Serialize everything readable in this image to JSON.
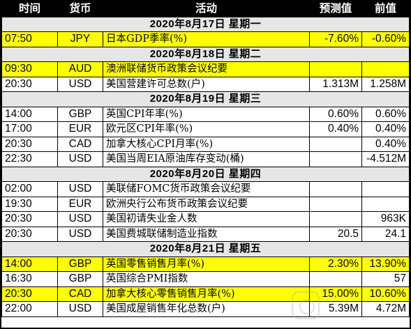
{
  "headers": {
    "time": "时间",
    "currency": "货币",
    "event": "活动",
    "forecast": "预测值",
    "previous": "前值"
  },
  "days": [
    {
      "date": "2020年8月17日  星期一",
      "events": [
        {
          "time": "07:50",
          "currency": "JPY",
          "event": "日本GDP季率(%)",
          "forecast": "-7.60%",
          "previous": "-0.60%",
          "highlight": true
        }
      ]
    },
    {
      "date": "2020年8月18日  星期二",
      "events": [
        {
          "time": "09:30",
          "currency": "AUD",
          "event": "澳洲联储货币政策会议纪要",
          "forecast": "",
          "previous": "",
          "highlight": true
        },
        {
          "time": "20:30",
          "currency": "USD",
          "event": "美国营建许可总数(户)",
          "forecast": "1.313M",
          "previous": "1.258M",
          "highlight": false
        }
      ]
    },
    {
      "date": "2020年8月19日  星期三",
      "events": [
        {
          "time": "14:00",
          "currency": "GBP",
          "event": "英国CPI年率(%)",
          "forecast": "0.60%",
          "previous": "0.60%",
          "highlight": false
        },
        {
          "time": "17:00",
          "currency": "EUR",
          "event": "欧元区CPI年率(%)",
          "forecast": "0.40%",
          "previous": "0.40%",
          "highlight": false
        },
        {
          "time": "20:30",
          "currency": "CAD",
          "event": "加拿大核心CPI月率(%)",
          "forecast": "",
          "previous": "0.40%",
          "highlight": false
        },
        {
          "time": "22:30",
          "currency": "USD",
          "event": "美国当周EIA原油库存变动(桶)",
          "forecast": "",
          "previous": "-4.512M",
          "highlight": false
        }
      ]
    },
    {
      "date": "2020年8月20日  星期四",
      "events": [
        {
          "time": "02:00",
          "currency": "USD",
          "event": "美联储FOMC货币政策会议纪要",
          "forecast": "",
          "previous": "",
          "highlight": false
        },
        {
          "time": "19:30",
          "currency": "EUR",
          "event": "欧洲央行公布货币政策会议纪要",
          "forecast": "",
          "previous": "",
          "highlight": false
        },
        {
          "time": "20:30",
          "currency": "USD",
          "event": "美国初请失业金人数",
          "forecast": "",
          "previous": "963K",
          "highlight": false
        },
        {
          "time": "20:30",
          "currency": "USD",
          "event": "美国费城联储制造业指数",
          "forecast": "20.5",
          "previous": "24.1",
          "highlight": false
        }
      ]
    },
    {
      "date": "2020年8月21日  星期五",
      "events": [
        {
          "time": "14:00",
          "currency": "GBP",
          "event": "英国零售销售月率(%)",
          "forecast": "2.30%",
          "previous": "13.90%",
          "highlight": true
        },
        {
          "time": "16:30",
          "currency": "GBP",
          "event": "英国综合PMI指数",
          "forecast": "",
          "previous": "57",
          "highlight": false
        },
        {
          "time": "20:30",
          "currency": "CAD",
          "event": "加拿大核心零售销售月率(%)",
          "forecast": "15.00%",
          "previous": "10.60%",
          "highlight": true
        },
        {
          "time": "22:00",
          "currency": "USD",
          "event": "美国成屋销售年化总数(户)",
          "forecast": "5.39M",
          "previous": "4.72M",
          "highlight": false
        }
      ]
    }
  ],
  "colors": {
    "header_bg": "#000000",
    "header_text": "#ffffff",
    "date_row_bg": "#e6e6e6",
    "highlight": "#ffff00"
  }
}
